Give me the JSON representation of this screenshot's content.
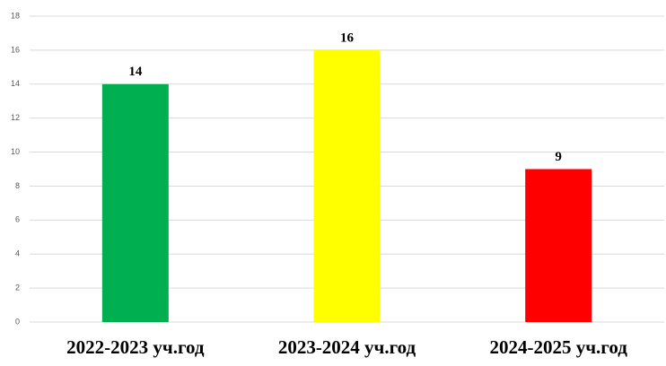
{
  "chart_data": {
    "type": "bar",
    "categories": [
      "2022-2023 уч.год",
      "2023-2024 уч.год",
      "2024-2025 уч.год"
    ],
    "values": [
      14,
      16,
      9
    ],
    "colors": [
      "#00b050",
      "#ffff00",
      "#ff0000"
    ],
    "ylim": [
      0,
      18
    ],
    "yticks": [
      0,
      2,
      4,
      6,
      8,
      10,
      12,
      14,
      16,
      18
    ],
    "grid": true
  }
}
